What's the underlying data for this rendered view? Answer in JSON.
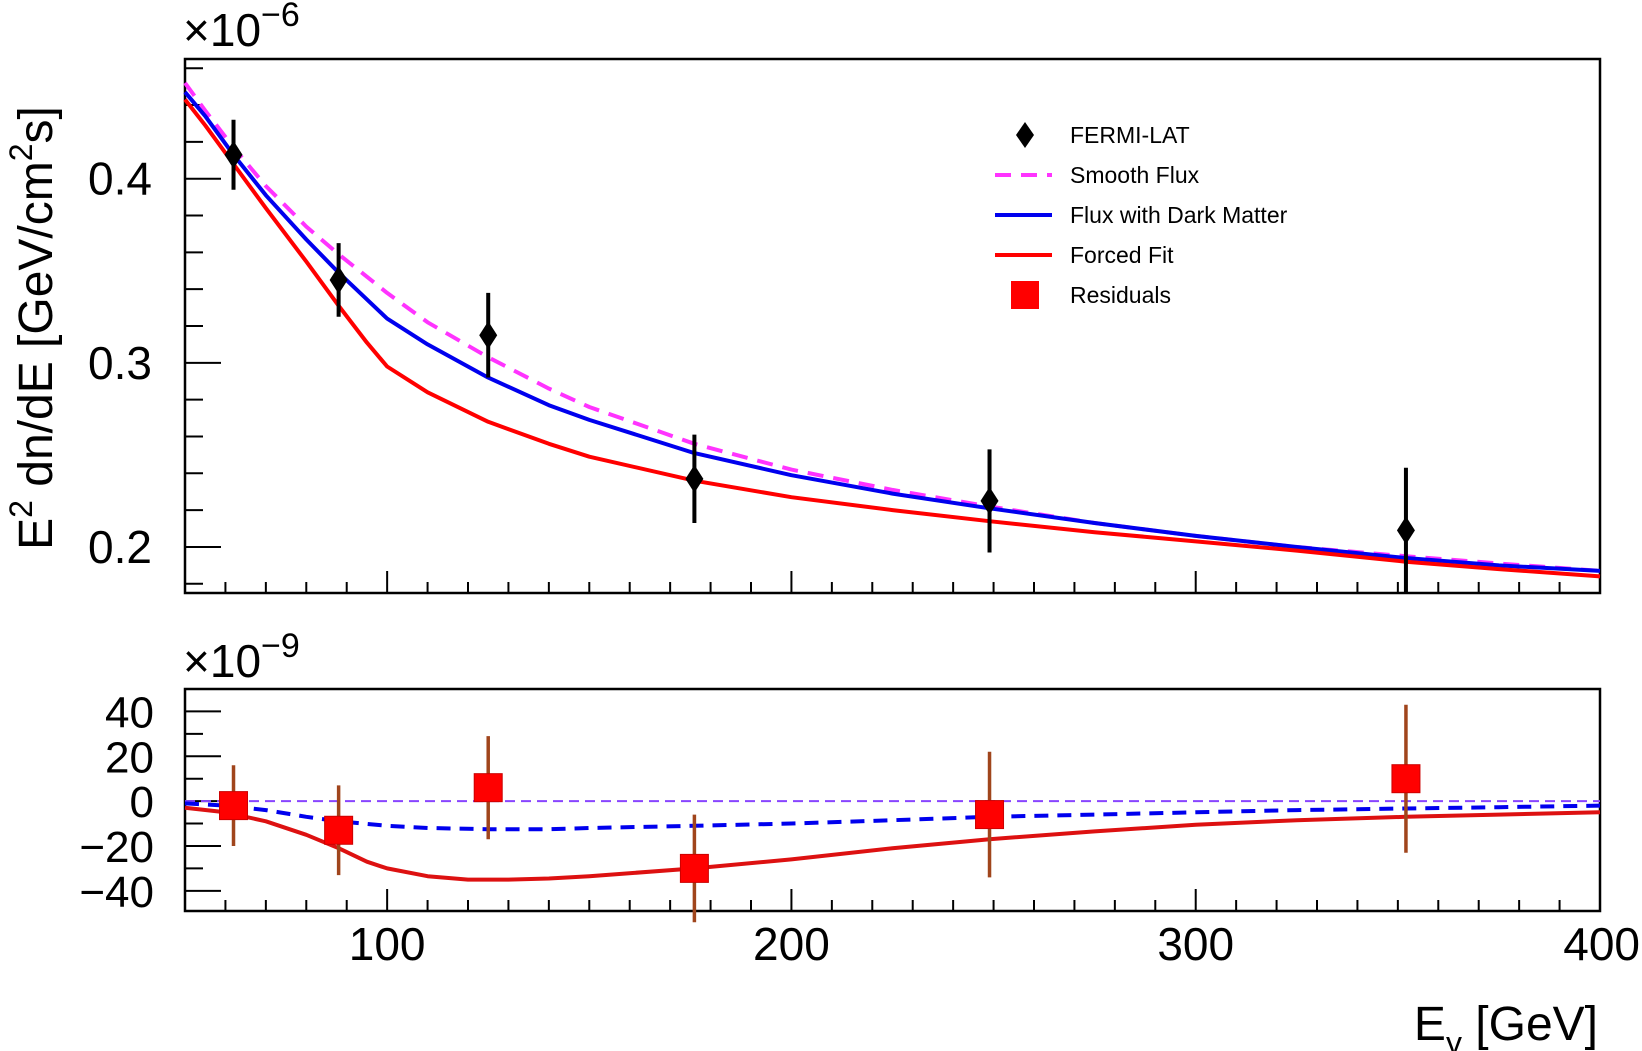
{
  "chart_data": [
    {
      "type": "line",
      "name": "main-panel",
      "ylabel_parts": [
        "E",
        "2",
        " dn/dE [GeV/cm",
        "2",
        "s]"
      ],
      "y_exponent_base": "×10",
      "y_exponent_power": "−6",
      "xlim": [
        50,
        400
      ],
      "ylim": [
        0.175,
        0.465
      ],
      "y_ticks": [
        0.2,
        0.3,
        0.4
      ],
      "y_tick_labels": [
        "0.2",
        "0.3",
        "0.4"
      ],
      "x_ticks": [
        100,
        200,
        300,
        400
      ],
      "legend_position": "top-right",
      "legend": [
        {
          "label": "FERMI-LAT",
          "marker": "diamond",
          "color": "#000000"
        },
        {
          "label": "Smooth Flux",
          "marker": "dashed-line",
          "color": "#ff33ff"
        },
        {
          "label": "Flux with Dark Matter",
          "marker": "line",
          "color": "#0000ee"
        },
        {
          "label": "Forced Fit",
          "marker": "line",
          "color": "#ff0000"
        },
        {
          "label": "Residuals",
          "marker": "square",
          "color": "#ff0000"
        }
      ],
      "points": {
        "x": [
          62,
          88,
          125,
          176,
          249,
          352
        ],
        "y": [
          0.413,
          0.345,
          0.315,
          0.237,
          0.225,
          0.209
        ],
        "err": [
          0.019,
          0.02,
          0.023,
          0.024,
          0.028,
          0.034
        ]
      },
      "series": [
        {
          "id": "smooth",
          "color": "#ff33ff",
          "dash": true,
          "x": [
            50,
            55,
            62,
            70,
            80,
            88,
            100,
            110,
            125,
            140,
            150,
            176,
            200,
            225,
            249,
            275,
            300,
            325,
            352,
            375,
            400
          ],
          "y": [
            0.452,
            0.437,
            0.417,
            0.396,
            0.374,
            0.359,
            0.338,
            0.322,
            0.303,
            0.286,
            0.276,
            0.256,
            0.242,
            0.231,
            0.222,
            0.213,
            0.206,
            0.2,
            0.195,
            0.191,
            0.187
          ]
        },
        {
          "id": "dark-matter",
          "color": "#0000ee",
          "dash": false,
          "x": [
            50,
            55,
            62,
            70,
            80,
            88,
            100,
            110,
            125,
            140,
            150,
            176,
            200,
            225,
            249,
            275,
            300,
            325,
            352,
            375,
            400
          ],
          "y": [
            0.447,
            0.434,
            0.413,
            0.391,
            0.367,
            0.349,
            0.324,
            0.31,
            0.292,
            0.277,
            0.269,
            0.251,
            0.239,
            0.229,
            0.221,
            0.213,
            0.206,
            0.2,
            0.194,
            0.19,
            0.187
          ]
        },
        {
          "id": "forced-fit",
          "color": "#ff0000",
          "dash": false,
          "x": [
            50,
            55,
            62,
            70,
            80,
            88,
            95,
            100,
            110,
            125,
            140,
            150,
            176,
            200,
            225,
            249,
            275,
            300,
            325,
            352,
            375,
            400
          ],
          "y": [
            0.443,
            0.429,
            0.408,
            0.384,
            0.355,
            0.331,
            0.311,
            0.298,
            0.284,
            0.268,
            0.256,
            0.249,
            0.236,
            0.227,
            0.22,
            0.214,
            0.208,
            0.203,
            0.198,
            0.192,
            0.188,
            0.184
          ]
        }
      ]
    },
    {
      "type": "line",
      "name": "residual-panel",
      "xlabel_parts": [
        "E",
        "γ",
        " [GeV]"
      ],
      "y_exponent_base": "×10",
      "y_exponent_power": "−9",
      "xlim": [
        50,
        400
      ],
      "ylim": [
        -49,
        50
      ],
      "y_ticks": [
        -40,
        -20,
        0,
        20,
        40
      ],
      "y_tick_labels": [
        "−40",
        "−20",
        "0",
        "20",
        "40"
      ],
      "x_ticks": [
        100,
        200,
        300,
        400
      ],
      "x_tick_labels": [
        "100",
        "200",
        "300",
        "400"
      ],
      "zero_line_color": "#8844ff",
      "points": {
        "x": [
          62,
          88,
          125,
          176,
          249,
          352
        ],
        "y": [
          -2,
          -13,
          6,
          -30,
          -6,
          10
        ],
        "err": [
          18,
          20,
          23,
          24,
          28,
          33
        ]
      },
      "series": [
        {
          "id": "dark-matter-residual",
          "color": "#0000ee",
          "dash": true,
          "x": [
            50,
            60,
            70,
            80,
            88,
            100,
            110,
            125,
            140,
            150,
            176,
            200,
            225,
            249,
            275,
            300,
            325,
            352,
            375,
            400
          ],
          "y": [
            -1,
            -2,
            -4,
            -7,
            -9,
            -11,
            -12,
            -12.5,
            -12.5,
            -12,
            -11,
            -10,
            -8.5,
            -7,
            -6,
            -5,
            -4,
            -3.3,
            -2.7,
            -2
          ]
        },
        {
          "id": "forced-fit-residual",
          "color": "#dd1111",
          "dash": false,
          "x": [
            50,
            60,
            70,
            80,
            88,
            95,
            100,
            110,
            120,
            130,
            140,
            150,
            176,
            200,
            225,
            249,
            275,
            300,
            325,
            352,
            375,
            400
          ],
          "y": [
            -3,
            -5,
            -9,
            -15,
            -21,
            -27,
            -30,
            -33.5,
            -35,
            -35,
            -34.5,
            -33.5,
            -30,
            -26,
            -21,
            -17,
            -13.5,
            -10.5,
            -8.5,
            -7,
            -6,
            -5
          ]
        }
      ]
    }
  ]
}
